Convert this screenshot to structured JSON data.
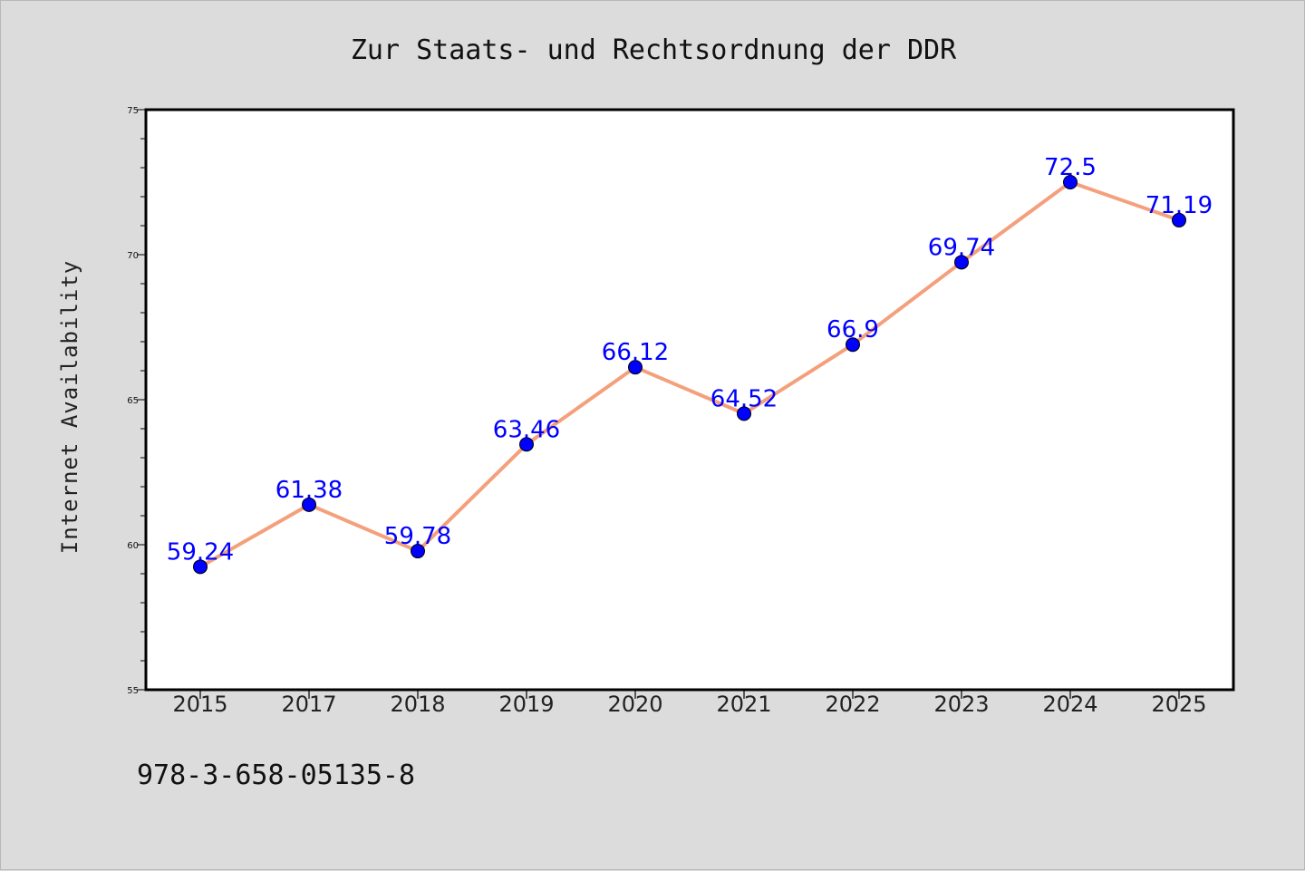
{
  "chart_data": {
    "type": "line",
    "title": "Zur Staats- und Rechtsordnung der DDR",
    "ylabel": "Internet Availability",
    "xlabel": "",
    "categories": [
      "2015",
      "2017",
      "2018",
      "2019",
      "2020",
      "2021",
      "2022",
      "2023",
      "2024",
      "2025"
    ],
    "series": [
      {
        "values": [
          59.24,
          61.38,
          59.78,
          63.46,
          66.12,
          64.52,
          66.9,
          69.74,
          72.5,
          71.19
        ],
        "labels": [
          "59.24",
          "61.38",
          "59.78",
          "63.46",
          "66.12",
          "64.52",
          "66.9",
          "69.74",
          "72.5",
          "71.19"
        ],
        "line_color": "#f4a07c",
        "marker_color": "#0000ff"
      }
    ],
    "ylim": [
      55,
      75
    ],
    "yticks": [
      "55",
      "60",
      "65",
      "70",
      "75"
    ],
    "grid": false,
    "legend": "none"
  },
  "footer_text": "978-3-658-05135-8",
  "colors": {
    "background": "#dcdcdc",
    "plot_background": "#ffffff",
    "line": "#f4a07c",
    "marker": "#0000ff",
    "data_label": "#0000ff"
  }
}
